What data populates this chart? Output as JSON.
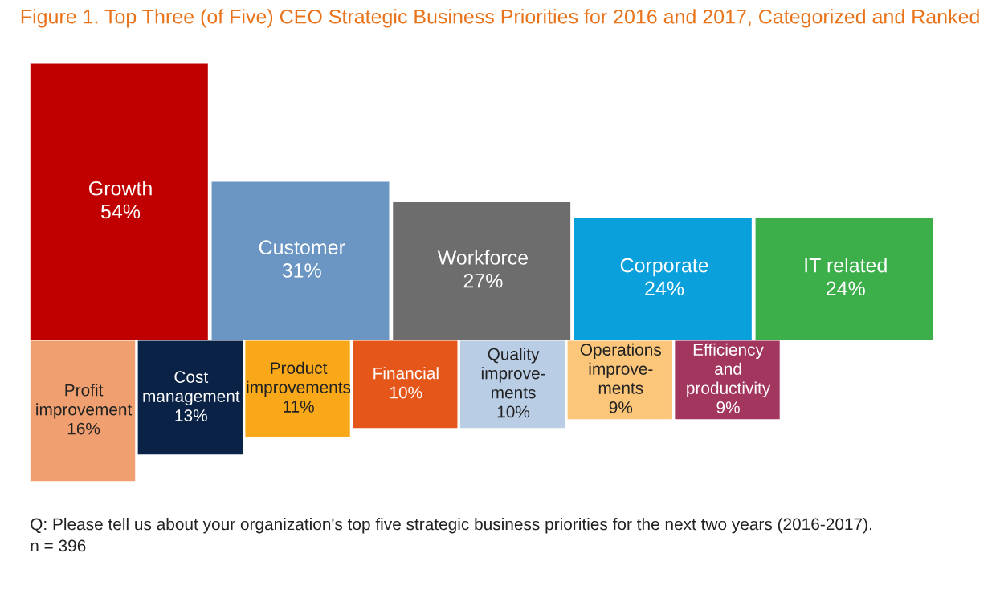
{
  "chart_data": {
    "type": "other",
    "title": "Figure 1. Top Three (of Five) CEO Strategic Business Priorities for 2016 and 2017, Categorized and Ranked",
    "categories": [
      "Growth",
      "Customer",
      "Workforce",
      "Corporate",
      "IT related",
      "Profit\nimprovement",
      "Cost\nmanagement",
      "Product\nimprovements",
      "Financial",
      "Quality\nimprove-\nments",
      "Operations\nimprove-\nments",
      "Efficiency\nand\nproductivity"
    ],
    "series": [
      {
        "values": [
          54,
          31,
          27,
          24,
          24,
          null,
          null,
          null,
          null,
          null,
          null,
          null
        ],
        "value_labels": [
          "54%",
          "31%",
          "27%",
          "24%",
          "24%",
          null,
          null,
          null,
          null,
          null,
          null,
          null
        ],
        "colors": [
          "#c00000",
          "#6b96c3",
          "#6d6d6d",
          "#0aa0dc",
          "#3cae4a",
          null,
          null,
          null,
          null,
          null,
          null,
          null
        ]
      },
      {
        "values": [
          null,
          null,
          null,
          null,
          null,
          16,
          13,
          11,
          10,
          10,
          9,
          9
        ],
        "value_labels": [
          null,
          null,
          null,
          null,
          null,
          "16%",
          "13%",
          "11%",
          "10%",
          "10%",
          "9%",
          "9%"
        ],
        "colors": [
          null,
          null,
          null,
          null,
          null,
          "#f0a070",
          "#0a2245",
          "#f9a81a",
          "#e4561a",
          "#b9cde5",
          "#fbc67a",
          "#a3365f"
        ]
      }
    ],
    "annotations": [
      "Q: Please tell us about your organization's top five strategic business priorities for the next two years (2016-2017).\nn = 396"
    ]
  }
}
